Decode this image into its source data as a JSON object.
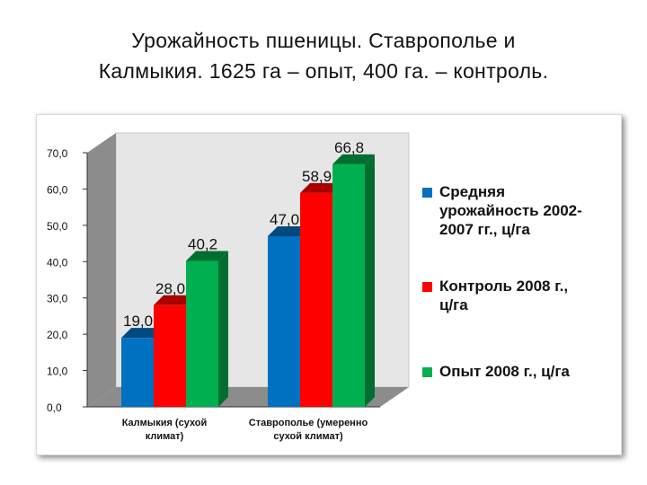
{
  "slide": {
    "title_line1": "Урожайность пшеницы. Ставрополье и",
    "title_line2": "Калмыкия. 1625 га – опыт, 400 га. – контроль."
  },
  "chart_data": {
    "type": "bar",
    "title": "",
    "categories": [
      [
        "Калмыкия (сухой",
        "климат)"
      ],
      [
        "Ставрополье (умеренно",
        "сухой климат)"
      ]
    ],
    "series": [
      {
        "name": "Средняя урожайность 2002-2007 гг., ц/га",
        "values": [
          19.0,
          47.0
        ],
        "labels": [
          "19,0",
          "47,0"
        ],
        "color": "#0070c0",
        "side": "#004a80"
      },
      {
        "name": "Контроль 2008 г., ц/га",
        "values": [
          28.0,
          58.9
        ],
        "labels": [
          "28,0",
          "58,9"
        ],
        "color": "#ff0000",
        "side": "#a80000"
      },
      {
        "name": "Опыт 2008 г., ц/га",
        "values": [
          40.2,
          66.8
        ],
        "labels": [
          "40,2",
          "66,8"
        ],
        "color": "#00b050",
        "side": "#006e30"
      }
    ],
    "yticks": [
      0,
      10,
      20,
      30,
      40,
      50,
      60,
      70
    ],
    "ytick_labels": [
      "0,0",
      "10,0",
      "20,0",
      "30,0",
      "40,0",
      "50,0",
      "60,0",
      "70,0"
    ],
    "ylim": [
      0,
      70
    ],
    "grid": false,
    "legend_position": "right",
    "legend_labels": [
      [
        "Средняя",
        "урожайность 2002-",
        "2007 гг., ц/га"
      ],
      [
        "Контроль 2008 г.,",
        "ц/га"
      ],
      [
        "Опыт 2008 г., ц/га"
      ]
    ]
  }
}
